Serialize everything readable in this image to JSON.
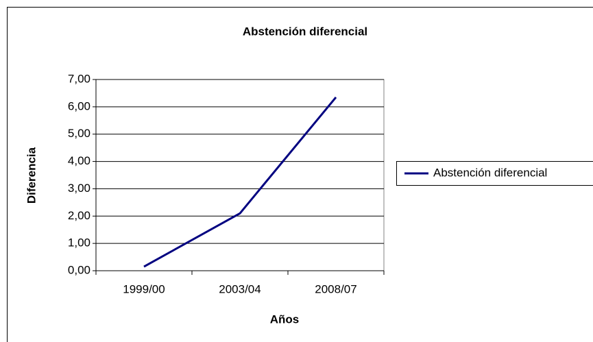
{
  "chart_data": {
    "type": "line",
    "title": "Abstención diferencial",
    "xlabel": "Años",
    "ylabel": "Diferencia",
    "categories": [
      "1999/00",
      "2003/04",
      "2008/07"
    ],
    "series": [
      {
        "name": "Abstención diferencial",
        "color": "#000080",
        "values": [
          0.15,
          2.1,
          6.35
        ]
      }
    ],
    "ylim": [
      0,
      7
    ],
    "yticks": [
      {
        "value": 0,
        "label": "0,00"
      },
      {
        "value": 1,
        "label": "1,00"
      },
      {
        "value": 2,
        "label": "2,00"
      },
      {
        "value": 3,
        "label": "3,00"
      },
      {
        "value": 4,
        "label": "4,00"
      },
      {
        "value": 5,
        "label": "5,00"
      },
      {
        "value": 6,
        "label": "6,00"
      },
      {
        "value": 7,
        "label": "7,00"
      }
    ],
    "grid": true,
    "legend": "right"
  }
}
